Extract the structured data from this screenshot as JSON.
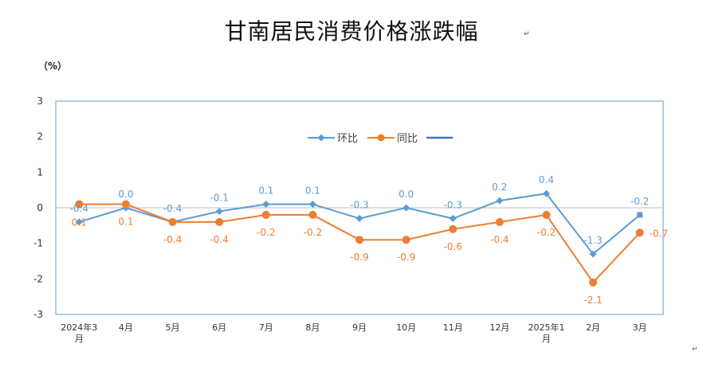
{
  "title": "甘南居民消费价格涨跌幅",
  "unit_label": "（%）",
  "chart_data": {
    "type": "line",
    "title": "甘南居民消费价格涨跌幅",
    "ylabel": "（%）",
    "ylim": [
      -3,
      3
    ],
    "yticks": [
      3,
      2,
      1,
      0,
      -1,
      -2,
      -3
    ],
    "categories": [
      [
        "2024年3",
        "月"
      ],
      [
        "4月"
      ],
      [
        "5月"
      ],
      [
        "6月"
      ],
      [
        "7月"
      ],
      [
        "8月"
      ],
      [
        "9月"
      ],
      [
        "10月"
      ],
      [
        "11月"
      ],
      [
        "12月"
      ],
      [
        "2025年1",
        "月"
      ],
      [
        "2月"
      ],
      [
        "3月"
      ]
    ],
    "series": [
      {
        "name": "环比",
        "color": "#5b9bd5",
        "marker": "diamond",
        "values": [
          -0.4,
          0.0,
          -0.4,
          -0.1,
          0.1,
          0.1,
          -0.3,
          0.0,
          -0.3,
          0.2,
          0.4,
          -1.3,
          -0.2
        ],
        "labels": [
          "-0.4",
          "0.0",
          "-0.4",
          "-0.1",
          "0.1",
          "0.1",
          "-0.3",
          "0.0",
          "-0.3",
          "0.2",
          "0.4",
          "-1.3",
          "-0.2"
        ]
      },
      {
        "name": "同比",
        "color": "#ed7d31",
        "marker": "circle",
        "values": [
          0.1,
          0.1,
          -0.4,
          -0.4,
          -0.2,
          -0.2,
          -0.9,
          -0.9,
          -0.6,
          -0.4,
          -0.2,
          -2.1,
          -0.7
        ],
        "labels": [
          "0.1",
          "0.1",
          "-0.4",
          "-0.4",
          "-0.2",
          "-0.2",
          "-0.9",
          "-0.9",
          "-0.6",
          "-0.4",
          "-0.2",
          "-2.1",
          "-0.7"
        ]
      }
    ],
    "legend": {
      "placement": "top-center",
      "entries": [
        "环比",
        "同比",
        ""
      ],
      "extra_color": "#4472c4"
    },
    "grid": false
  }
}
